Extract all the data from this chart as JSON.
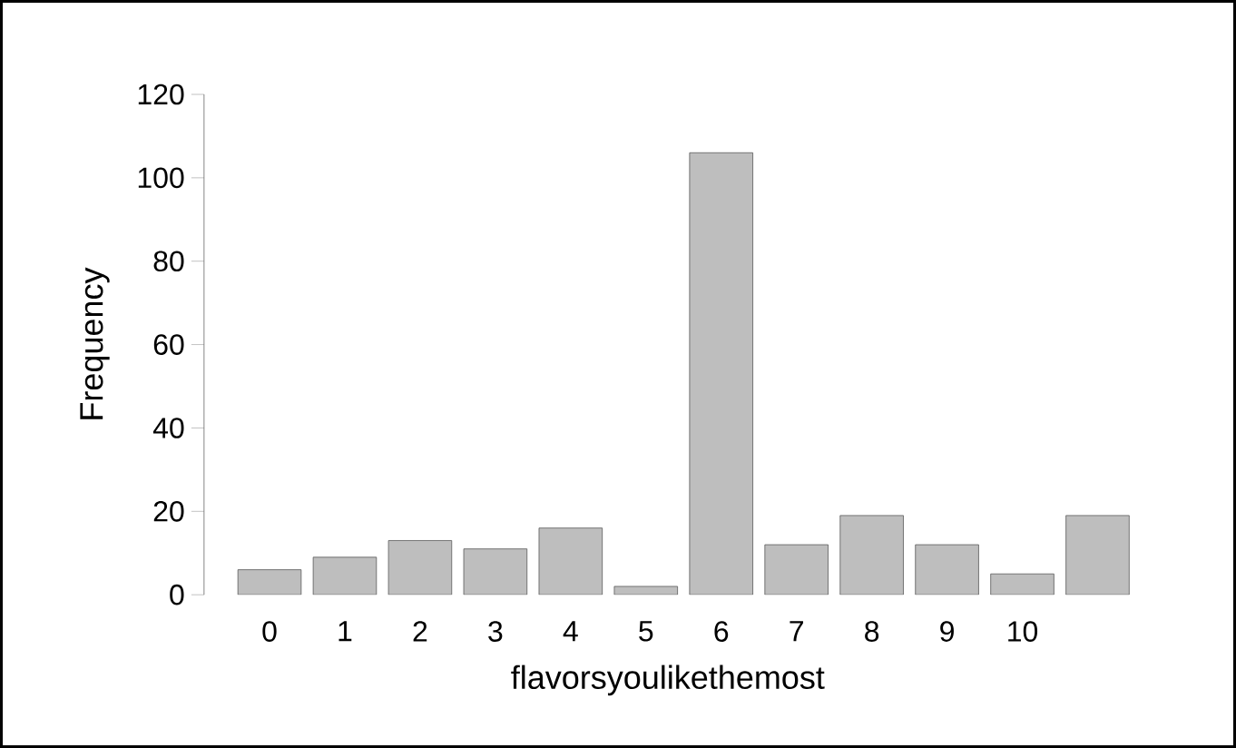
{
  "chart_data": {
    "type": "bar",
    "xlabel": "flavorsyoulikethemost",
    "ylabel": "Frequency",
    "categories": [
      "0",
      "1",
      "2",
      "3",
      "4",
      "5",
      "6",
      "7",
      "8",
      "9",
      "10",
      null
    ],
    "values": [
      6,
      9,
      13,
      11,
      16,
      2,
      106,
      12,
      19,
      12,
      5,
      19
    ],
    "color": "#bebebe",
    "ylim": [
      0,
      120
    ],
    "yticks": [
      0,
      20,
      40,
      60,
      80,
      100,
      120
    ],
    "grid": false
  }
}
